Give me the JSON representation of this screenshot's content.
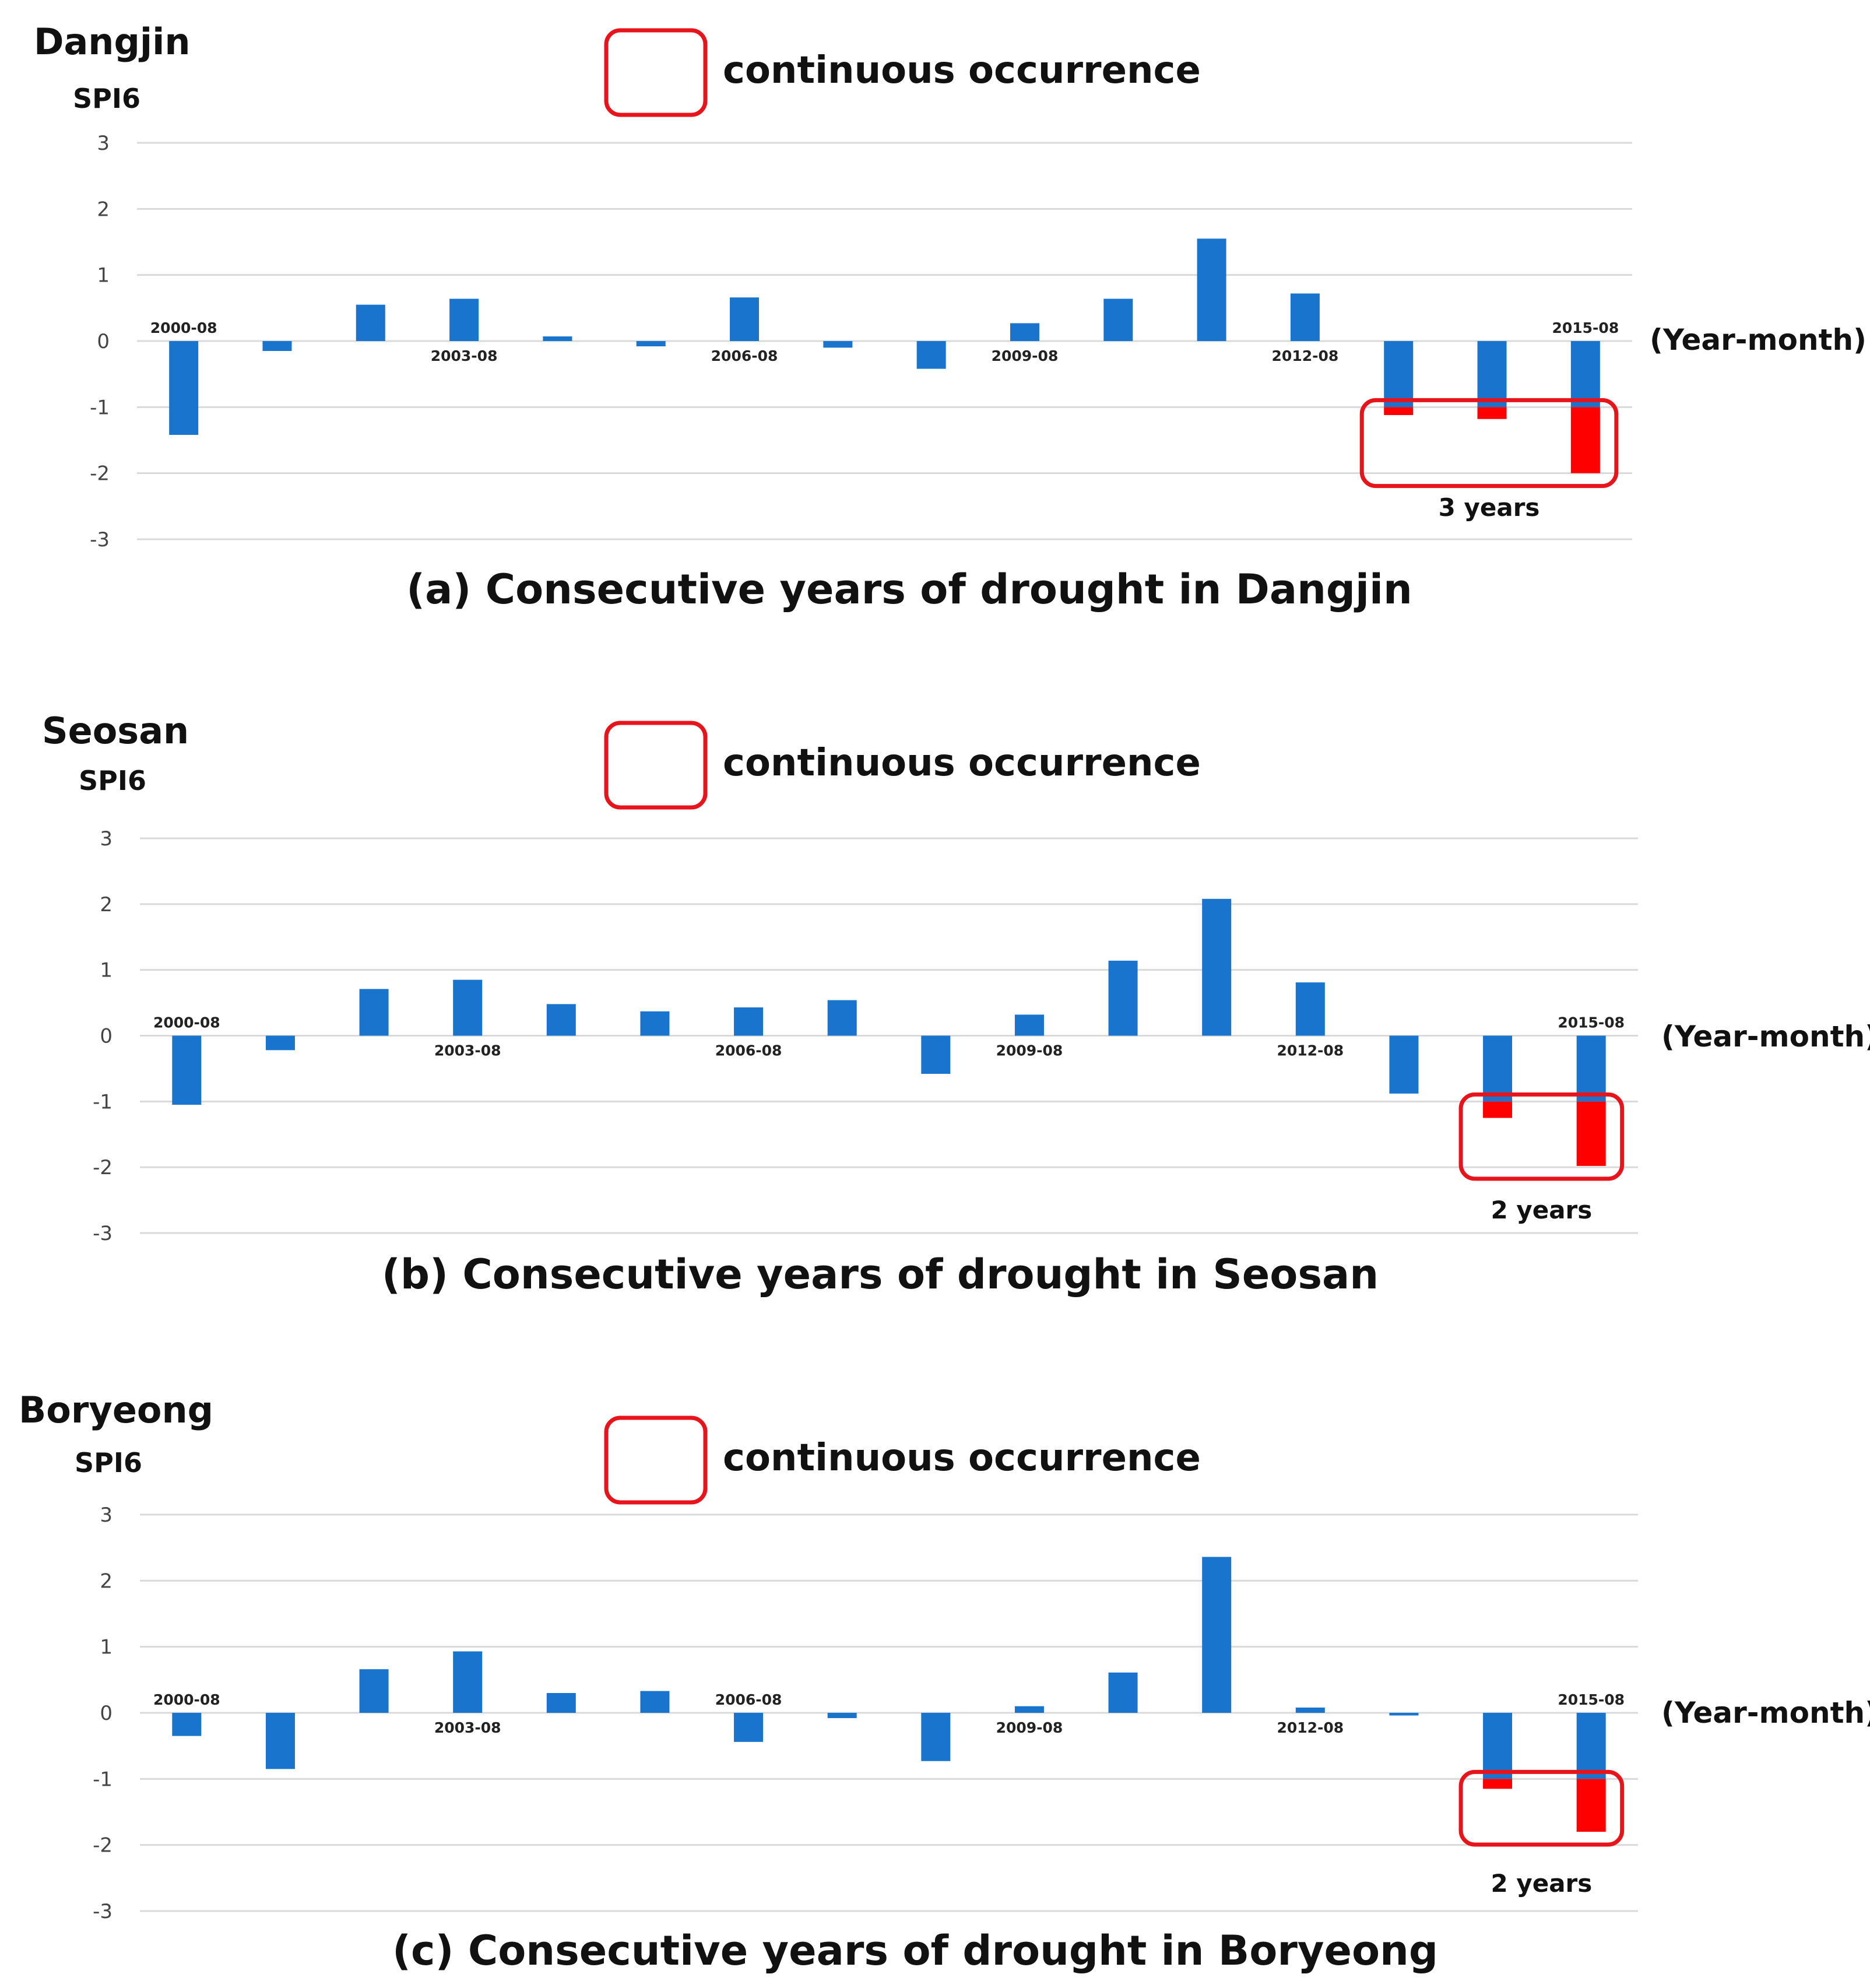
{
  "chart_data": [
    {
      "type": "bar",
      "station": "Dangjin",
      "ylabel": "SPI6",
      "xlabel": "(Year-month)",
      "legend_label": "continuous occurrence",
      "caption": "(a) Consecutive years of drought in Dangjin",
      "categories": [
        "2000-08",
        "2001-08",
        "2002-08",
        "2003-08",
        "2004-08",
        "2005-08",
        "2006-08",
        "2007-08",
        "2008-08",
        "2009-08",
        "2010-08",
        "2011-08",
        "2012-08",
        "2013-08",
        "2014-08",
        "2015-08"
      ],
      "tick_labels": {
        "0": "2000-08",
        "3": "2003-08",
        "6": "2006-08",
        "9": "2009-08",
        "12": "2012-08",
        "15": "2015-08"
      },
      "values": [
        -1.42,
        -0.15,
        0.55,
        0.64,
        0.07,
        -0.08,
        0.66,
        -0.1,
        -0.42,
        0.27,
        0.64,
        1.55,
        0.72,
        -1.12,
        -1.18,
        -2.0
      ],
      "ylim": [
        -3,
        3
      ],
      "yticks": [
        "3",
        "2",
        "1",
        "0",
        "-1",
        "-2",
        "-3"
      ],
      "highlight_threshold": -1,
      "highlight_start": 13,
      "highlight_end": 15,
      "annotation": "3 years",
      "colors": {
        "bar": "#1874CD",
        "highlight": "#FF0000",
        "box": "#E8141C",
        "grid": "#D9D9D9"
      }
    },
    {
      "type": "bar",
      "station": "Seosan",
      "ylabel": "SPI6",
      "xlabel": "(Year-month)",
      "legend_label": "continuous occurrence",
      "caption": "(b) Consecutive years of drought in Seosan",
      "categories": [
        "2000-08",
        "2001-08",
        "2002-08",
        "2003-08",
        "2004-08",
        "2005-08",
        "2006-08",
        "2007-08",
        "2008-08",
        "2009-08",
        "2010-08",
        "2011-08",
        "2012-08",
        "2013-08",
        "2014-08",
        "2015-08"
      ],
      "tick_labels": {
        "0": "2000-08",
        "3": "2003-08",
        "6": "2006-08",
        "9": "2009-08",
        "12": "2012-08",
        "15": "2015-08"
      },
      "values": [
        -1.05,
        -0.22,
        0.71,
        0.85,
        0.48,
        0.37,
        0.43,
        0.54,
        -0.58,
        0.32,
        1.14,
        2.08,
        0.81,
        -0.88,
        -1.25,
        -1.98
      ],
      "ylim": [
        -3,
        3
      ],
      "yticks": [
        "3",
        "2",
        "1",
        "0",
        "-1",
        "-2",
        "-3"
      ],
      "highlight_threshold": -1,
      "highlight_start": 14,
      "highlight_end": 15,
      "annotation": "2 years",
      "colors": {
        "bar": "#1874CD",
        "highlight": "#FF0000",
        "box": "#E8141C",
        "grid": "#D9D9D9"
      }
    },
    {
      "type": "bar",
      "station": "Boryeong",
      "ylabel": "SPI6",
      "xlabel": "(Year-month)",
      "legend_label": "continuous occurrence",
      "caption": "(c) Consecutive years of drought in Boryeong",
      "categories": [
        "2000-08",
        "2001-08",
        "2002-08",
        "2003-08",
        "2004-08",
        "2005-08",
        "2006-08",
        "2007-08",
        "2008-08",
        "2009-08",
        "2010-08",
        "2011-08",
        "2012-08",
        "2013-08",
        "2014-08",
        "2015-08"
      ],
      "tick_labels": {
        "0": "2000-08",
        "3": "2003-08",
        "6": "2006-08",
        "9": "2009-08",
        "12": "2012-08",
        "15": "2015-08"
      },
      "values": [
        -0.35,
        -0.85,
        0.66,
        0.93,
        0.3,
        0.33,
        -0.44,
        -0.08,
        -0.73,
        0.1,
        0.61,
        2.36,
        0.08,
        -0.04,
        -1.15,
        -1.8
      ],
      "ylim": [
        -3,
        3
      ],
      "yticks": [
        "3",
        "2",
        "1",
        "0",
        "-1",
        "-2",
        "-3"
      ],
      "highlight_threshold": -1,
      "highlight_start": 14,
      "highlight_end": 15,
      "annotation": "2 years",
      "colors": {
        "bar": "#1874CD",
        "highlight": "#FF0000",
        "box": "#E8141C",
        "grid": "#D9D9D9"
      }
    }
  ]
}
